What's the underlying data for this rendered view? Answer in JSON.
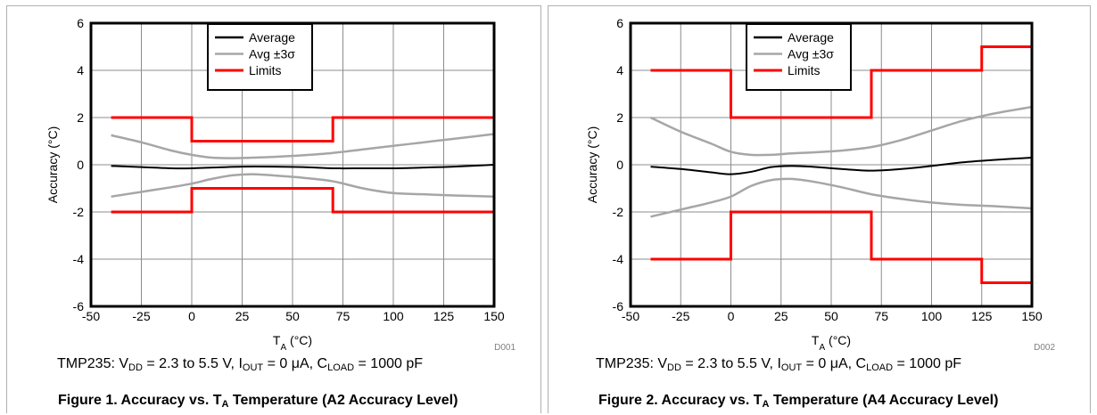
{
  "charts": [
    {
      "conditions": {
        "device": "TMP235:",
        "vdd_label": "V",
        "vdd_sub": "DD",
        "vdd_value": "= 2.3 to 5.5 V,",
        "iout_label": "I",
        "iout_sub": "OUT",
        "iout_value": "= 0 μA,",
        "cload_label": "C",
        "cload_sub": "LOAD",
        "cload_value": "= 1000 pF"
      },
      "caption": {
        "prefix": "Figure 1. Accuracy vs. T",
        "sub": "A",
        "suffix": " Temperature (A2 Accuracy Level)"
      },
      "code": "D001"
    },
    {
      "conditions": {
        "device": "TMP235:",
        "vdd_label": "V",
        "vdd_sub": "DD",
        "vdd_value": "= 2.3 to 5.5 V,",
        "iout_label": "I",
        "iout_sub": "OUT",
        "iout_value": "= 0 μA,",
        "cload_label": "C",
        "cload_sub": "LOAD",
        "cload_value": "= 1000 pF"
      },
      "caption": {
        "prefix": "Figure 2. Accuracy vs. T",
        "sub": "A",
        "suffix": " Temperature (A4 Accuracy Level)"
      },
      "code": "D002"
    }
  ],
  "chart_data": [
    {
      "type": "line",
      "xlabel": "T",
      "xlabel_sub": "A",
      "xlabel_unit": " (°C)",
      "ylabel": "Accuracy (°C)",
      "xlim": [
        -50,
        150
      ],
      "ylim": [
        -6,
        6
      ],
      "xticks": [
        -50,
        -25,
        0,
        25,
        50,
        75,
        100,
        125,
        150
      ],
      "yticks": [
        -6,
        -4,
        -2,
        0,
        2,
        4,
        6
      ],
      "grid": true,
      "legend_position": "top-left",
      "series": [
        {
          "name": "Average",
          "color": "#000000",
          "role": "average",
          "x": [
            -40,
            -25,
            -10,
            0,
            10,
            25,
            40,
            55,
            70,
            85,
            100,
            115,
            130,
            150
          ],
          "y": [
            -0.05,
            -0.1,
            -0.15,
            -0.15,
            -0.12,
            -0.08,
            -0.08,
            -0.1,
            -0.15,
            -0.15,
            -0.15,
            -0.12,
            -0.08,
            0.0
          ]
        },
        {
          "name": "Avg ±3σ",
          "color": "#a6a6a6",
          "role": "sigma",
          "x": [
            -40,
            -25,
            -10,
            0,
            10,
            20,
            30,
            40,
            55,
            70,
            85,
            100,
            115,
            130,
            150
          ],
          "y": [
            1.25,
            0.95,
            0.6,
            0.42,
            0.3,
            0.28,
            0.3,
            0.33,
            0.4,
            0.5,
            0.65,
            0.8,
            0.95,
            1.1,
            1.3
          ]
        },
        {
          "name": "",
          "color": "#a6a6a6",
          "role": "sigma",
          "x": [
            -40,
            -25,
            -10,
            0,
            10,
            20,
            30,
            40,
            55,
            70,
            85,
            100,
            115,
            130,
            150
          ],
          "y": [
            -1.35,
            -1.15,
            -0.95,
            -0.8,
            -0.6,
            -0.45,
            -0.4,
            -0.45,
            -0.55,
            -0.7,
            -1.0,
            -1.2,
            -1.25,
            -1.3,
            -1.35
          ]
        },
        {
          "name": "Limits",
          "color": "#ff0000",
          "role": "limit",
          "x": [
            -40,
            0,
            0,
            70,
            70,
            150
          ],
          "y": [
            2,
            2,
            1,
            1,
            2,
            2
          ]
        },
        {
          "name": "",
          "color": "#ff0000",
          "role": "limit",
          "x": [
            -40,
            0,
            0,
            70,
            70,
            150
          ],
          "y": [
            -2,
            -2,
            -1,
            -1,
            -2,
            -2
          ]
        }
      ]
    },
    {
      "type": "line",
      "xlabel": "T",
      "xlabel_sub": "A",
      "xlabel_unit": " (°C)",
      "ylabel": "Accuracy (°C)",
      "xlim": [
        -50,
        150
      ],
      "ylim": [
        -6,
        6
      ],
      "xticks": [
        -50,
        -25,
        0,
        25,
        50,
        75,
        100,
        125,
        150
      ],
      "yticks": [
        -6,
        -4,
        -2,
        0,
        2,
        4,
        6
      ],
      "grid": true,
      "legend_position": "top-center",
      "series": [
        {
          "name": "Average",
          "color": "#000000",
          "role": "average",
          "x": [
            -40,
            -25,
            -10,
            0,
            10,
            20,
            30,
            40,
            55,
            70,
            85,
            100,
            115,
            130,
            150
          ],
          "y": [
            -0.08,
            -0.18,
            -0.32,
            -0.4,
            -0.3,
            -0.1,
            -0.05,
            -0.08,
            -0.18,
            -0.25,
            -0.18,
            -0.05,
            0.1,
            0.2,
            0.3
          ]
        },
        {
          "name": "Avg ±3σ",
          "color": "#a6a6a6",
          "role": "sigma",
          "x": [
            -40,
            -25,
            -10,
            0,
            10,
            20,
            30,
            40,
            55,
            70,
            85,
            100,
            115,
            130,
            150
          ],
          "y": [
            2.0,
            1.4,
            0.9,
            0.55,
            0.42,
            0.42,
            0.48,
            0.52,
            0.6,
            0.75,
            1.05,
            1.45,
            1.85,
            2.15,
            2.45
          ]
        },
        {
          "name": "",
          "color": "#a6a6a6",
          "role": "sigma",
          "x": [
            -40,
            -25,
            -10,
            0,
            10,
            20,
            30,
            40,
            55,
            70,
            85,
            100,
            115,
            130,
            150
          ],
          "y": [
            -2.2,
            -1.9,
            -1.6,
            -1.35,
            -0.9,
            -0.65,
            -0.6,
            -0.7,
            -0.95,
            -1.25,
            -1.45,
            -1.6,
            -1.7,
            -1.75,
            -1.85
          ]
        },
        {
          "name": "Limits",
          "color": "#ff0000",
          "role": "limit",
          "x": [
            -40,
            0,
            0,
            70,
            70,
            125,
            125,
            150
          ],
          "y": [
            4,
            4,
            2,
            2,
            4,
            4,
            5,
            5
          ]
        },
        {
          "name": "",
          "color": "#ff0000",
          "role": "limit",
          "x": [
            -40,
            0,
            0,
            70,
            70,
            125,
            125,
            150
          ],
          "y": [
            -4,
            -4,
            -2,
            -2,
            -4,
            -4,
            -5,
            -5
          ]
        }
      ]
    }
  ]
}
